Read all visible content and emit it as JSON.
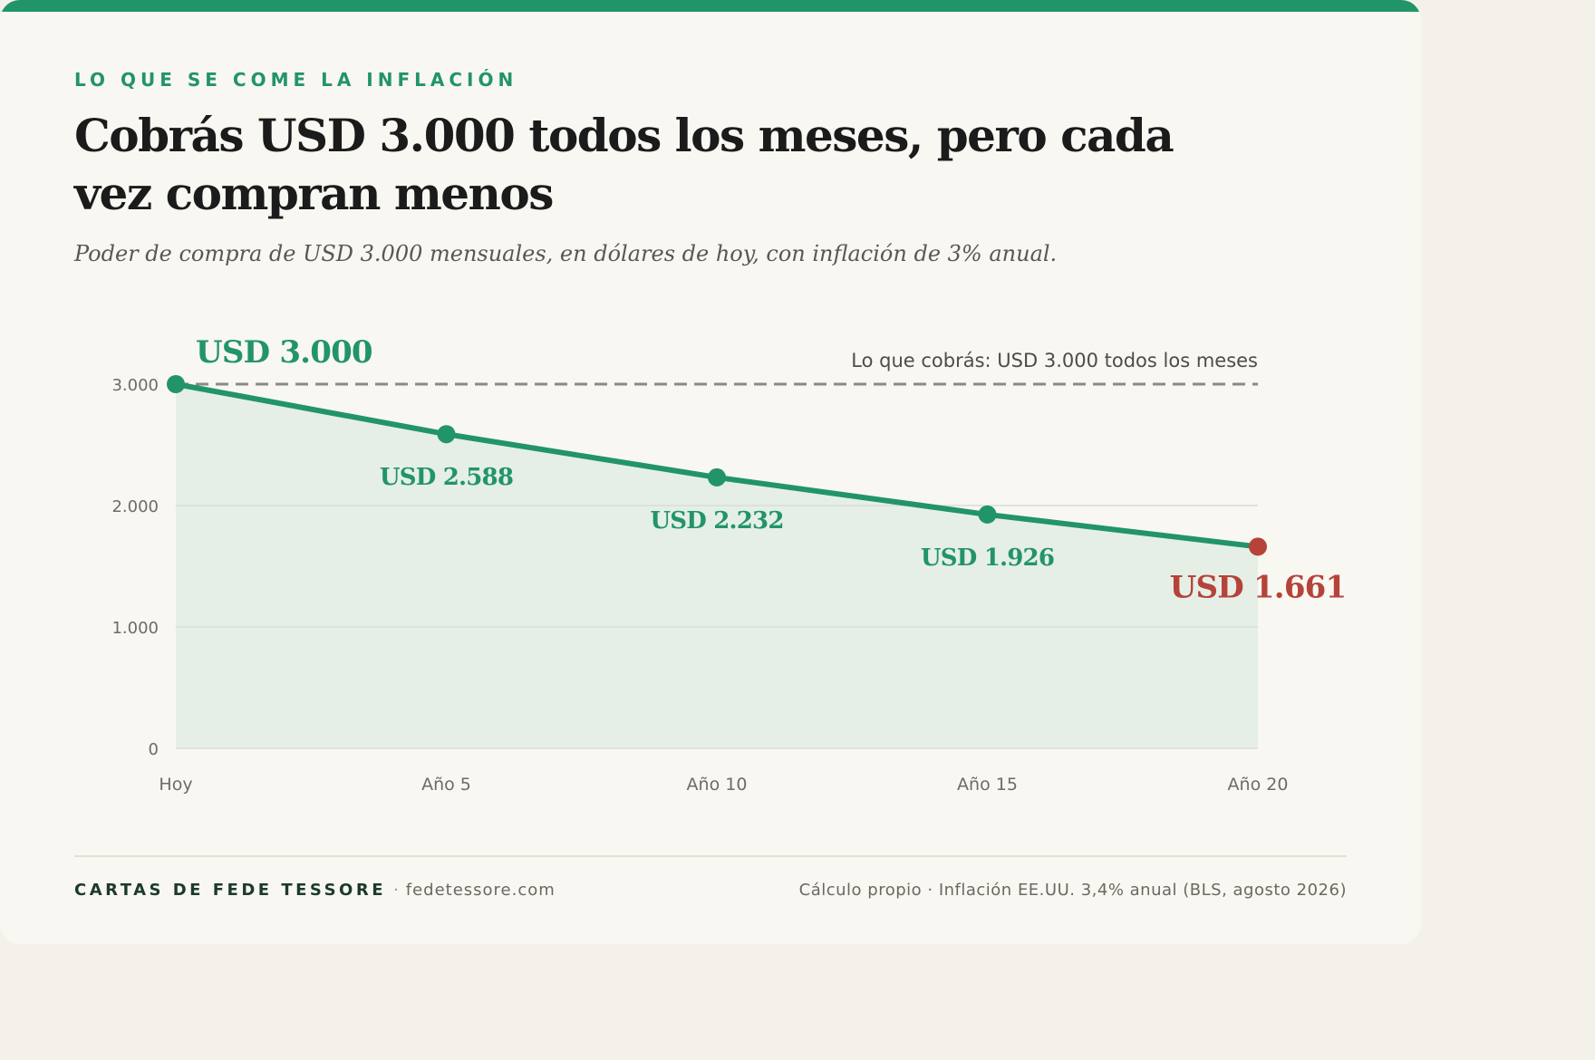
{
  "header": {
    "eyebrow": "LO QUE SE COME LA INFLACIÓN",
    "title": "Cobrás USD 3.000 todos los meses, pero cada vez compran menos",
    "subtitle": "Poder de compra de USD 3.000 mensuales, en dólares de hoy, con inflación de 3% anual."
  },
  "chart_data": {
    "type": "area",
    "title": "",
    "xlabel": "",
    "ylabel": "",
    "categories": [
      "Hoy",
      "Año 5",
      "Año 10",
      "Año 15",
      "Año 20"
    ],
    "series": [
      {
        "values": [
          3000,
          2588,
          2232,
          1926,
          1661
        ],
        "data_labels": [
          "USD 3.000",
          "USD 2.588",
          "USD 2.232",
          "USD 1.926",
          "USD 1.661"
        ]
      }
    ],
    "reference_line": {
      "value": 3000,
      "label": "Lo que cobrás: USD 3.000 todos los meses"
    },
    "ylim": [
      0,
      3000
    ],
    "yticks": [
      0,
      1000,
      2000,
      3000
    ],
    "ytick_labels": [
      "0",
      "1.000",
      "2.000",
      "3.000"
    ],
    "grid": true,
    "colors": {
      "line": "#229469",
      "area": "#e5efe6",
      "last_point": "#b5433a",
      "reference": "#8c8a85",
      "grid": "#d8ddd6",
      "tick_text": "#6e6b66"
    }
  },
  "footer": {
    "brand": "CARTAS DE FEDE TESSORE",
    "separator": "·",
    "site": "fedetessore.com",
    "source": "Cálculo propio · Inflación EE.UU. 3,4% anual (BLS, agosto 2026)"
  },
  "colors": {
    "accent": "#229469",
    "top_bar": "#229469",
    "background": "#f8f7f2"
  }
}
